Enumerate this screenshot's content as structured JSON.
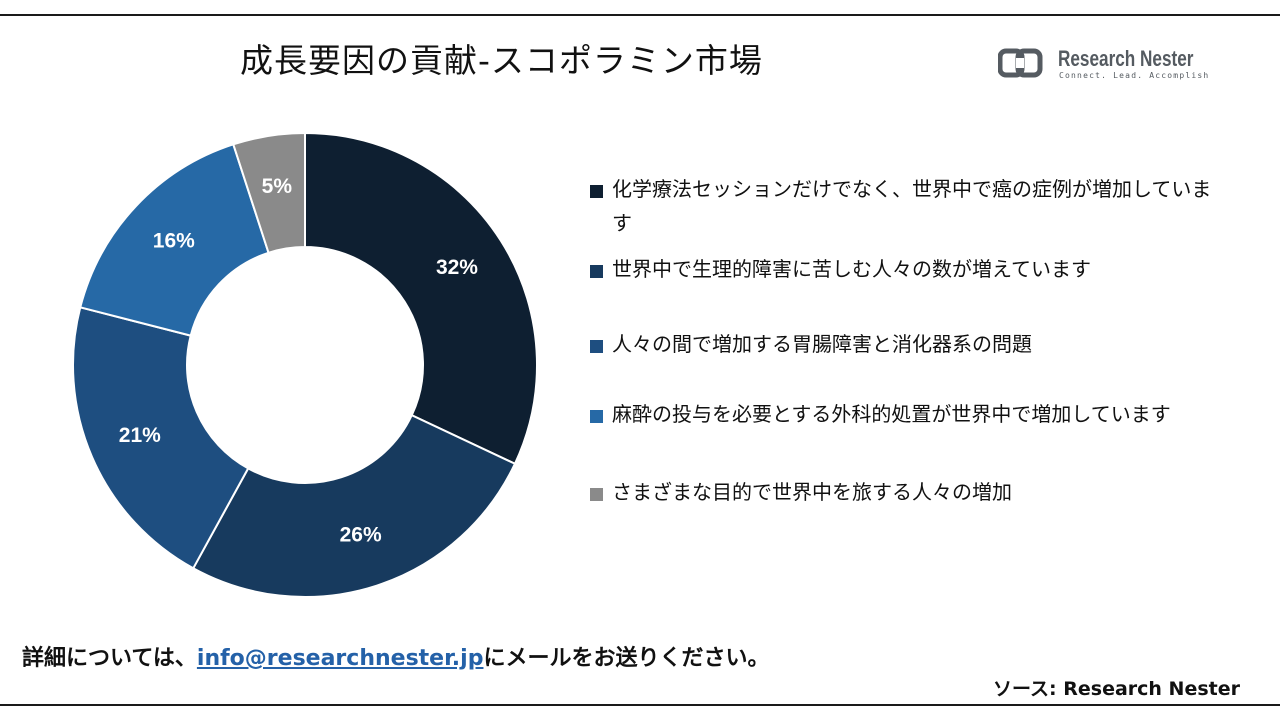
{
  "title": "成長要因の貢献-スコポラミン市場",
  "logo": {
    "name": "Research Nester",
    "tagline": "Connect. Lead. Accomplish"
  },
  "chart_data": {
    "type": "pie",
    "donut": true,
    "title": "成長要因の貢献-スコポラミン市場",
    "legend_position": "right",
    "data_label_unit": "%",
    "slices": [
      {
        "label": "化学療法セッションだけでなく、世界中で癌の症例が増加しています",
        "value": 32,
        "color": "#0e1f31"
      },
      {
        "label": "世界中で生理的障害に苦しむ人々の数が増えています",
        "value": 26,
        "color": "#173a5e"
      },
      {
        "label": "人々の間で増加する胃腸障害と消化器系の問題",
        "value": 21,
        "color": "#1e4e80"
      },
      {
        "label": "麻酔の投与を必要とする外科的処置が世界中で増加しています",
        "value": 16,
        "color": "#2669a6"
      },
      {
        "label": "さまざまな目的で世界中を旅する人々の増加",
        "value": 5,
        "color": "#8a8a8a"
      }
    ]
  },
  "footer": {
    "prefix": "詳細については、",
    "email": "info@researchnester.jp",
    "suffix": "にメールをお送りください。"
  },
  "source": "ソース: Research Nester"
}
